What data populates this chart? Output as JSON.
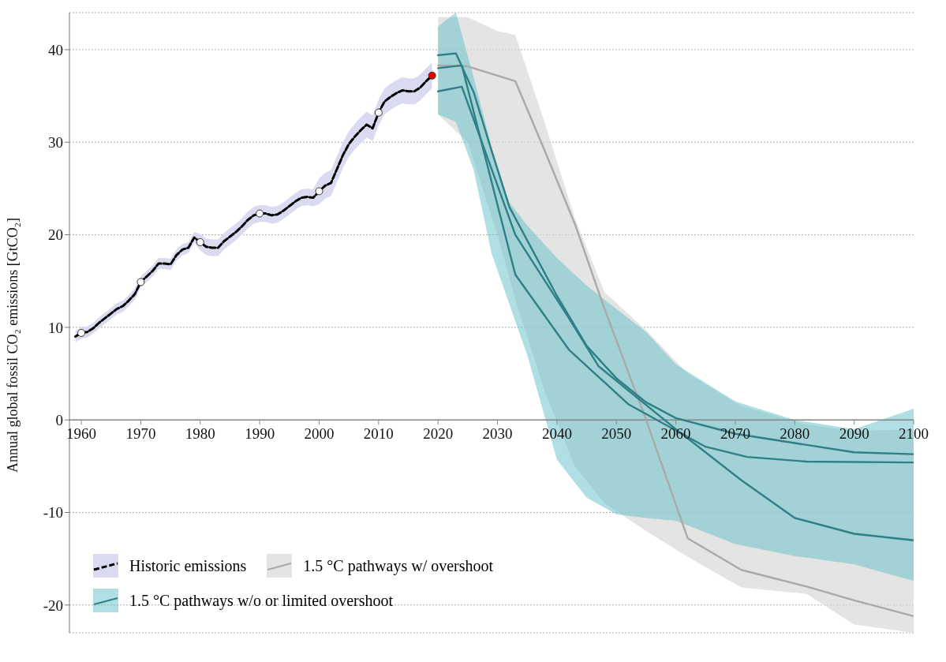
{
  "chart_data": {
    "type": "line",
    "ylabel": "Annual global fossil CO₂ emissions [GtCO₂]",
    "xlim": [
      1958,
      2100
    ],
    "xticks": [
      1960,
      1970,
      1980,
      1990,
      2000,
      2010,
      2020,
      2030,
      2040,
      2050,
      2060,
      2070,
      2080,
      2090,
      2100
    ],
    "ylim": [
      -23,
      44
    ],
    "yticks": [
      -20,
      -10,
      0,
      10,
      20,
      30,
      40
    ],
    "grid": "y",
    "legend": "bottom left",
    "series": [
      {
        "name": "Historic emissions",
        "color": "#000000",
        "line_style": "dashed",
        "marker": "none",
        "x": [
          1959,
          1960,
          1961,
          1962,
          1963,
          1964,
          1965,
          1966,
          1967,
          1968,
          1969,
          1970,
          1971,
          1972,
          1973,
          1974,
          1975,
          1976,
          1977,
          1978,
          1979,
          1980,
          1981,
          1982,
          1983,
          1984,
          1985,
          1986,
          1987,
          1988,
          1989,
          1990,
          1991,
          1992,
          1993,
          1994,
          1995,
          1996,
          1997,
          1998,
          1999,
          2000,
          2001,
          2002,
          2003,
          2004,
          2005,
          2006,
          2007,
          2008,
          2009,
          2010,
          2011,
          2012,
          2013,
          2014,
          2015,
          2016,
          2017,
          2018,
          2019
        ],
        "values": [
          9.0,
          9.4,
          9.5,
          9.9,
          10.5,
          11.0,
          11.5,
          12.0,
          12.3,
          12.9,
          13.6,
          14.9,
          15.5,
          16.1,
          16.9,
          16.9,
          16.8,
          17.8,
          18.4,
          18.6,
          19.7,
          19.2,
          18.7,
          18.6,
          18.6,
          19.3,
          19.8,
          20.3,
          20.9,
          21.6,
          22.1,
          22.3,
          22.3,
          22.1,
          22.2,
          22.6,
          23.1,
          23.6,
          24.0,
          24.1,
          24.0,
          24.7,
          25.3,
          25.6,
          27.1,
          28.6,
          29.8,
          30.6,
          31.3,
          31.9,
          31.5,
          33.2,
          34.4,
          34.9,
          35.3,
          35.6,
          35.5,
          35.5,
          35.9,
          36.6,
          37.2
        ],
        "lower": [
          8.4,
          8.8,
          8.9,
          9.3,
          9.9,
          10.4,
          10.9,
          11.4,
          11.7,
          12.3,
          13.0,
          14.3,
          14.9,
          15.5,
          16.3,
          16.3,
          16.2,
          17.2,
          17.8,
          18.0,
          19.1,
          18.3,
          17.8,
          17.7,
          17.7,
          18.4,
          18.9,
          19.4,
          20.0,
          20.7,
          21.2,
          21.4,
          21.4,
          21.2,
          21.3,
          21.7,
          22.2,
          22.7,
          23.1,
          23.2,
          23.1,
          23.3,
          23.9,
          24.2,
          25.7,
          27.2,
          28.4,
          29.2,
          29.9,
          30.5,
          30.1,
          31.8,
          33.0,
          33.5,
          33.9,
          34.2,
          34.1,
          34.1,
          34.5,
          35.2,
          35.8
        ],
        "upper": [
          9.6,
          10.0,
          10.1,
          10.5,
          11.1,
          11.6,
          12.1,
          12.6,
          12.9,
          13.5,
          14.2,
          15.5,
          16.1,
          16.7,
          17.5,
          17.5,
          17.4,
          18.4,
          19.0,
          19.2,
          20.3,
          20.1,
          19.6,
          19.5,
          19.5,
          20.2,
          20.7,
          21.2,
          21.8,
          22.5,
          23.0,
          23.2,
          23.2,
          23.0,
          23.1,
          23.5,
          24.0,
          24.5,
          24.9,
          25.0,
          24.9,
          26.1,
          26.7,
          27.0,
          28.5,
          30.0,
          31.2,
          32.0,
          32.7,
          33.3,
          32.9,
          34.6,
          35.8,
          36.3,
          36.7,
          37.0,
          36.9,
          36.9,
          37.3,
          38.0,
          38.6
        ]
      },
      {
        "type": "scatter",
        "color": "#ffffff",
        "marker": "circle",
        "x": [
          1960,
          1970,
          1980,
          1990,
          2000,
          2010
        ],
        "values": [
          9.4,
          14.9,
          19.2,
          22.3,
          24.7,
          33.2
        ]
      },
      {
        "type": "scatter",
        "color": "#e00000",
        "marker": "circle",
        "x": [
          2019
        ],
        "values": [
          37.2
        ]
      },
      {
        "name": "1.5 °C pathways w/ overshoot",
        "color": "#a9a9a9",
        "line_style": "solid",
        "marker": "none",
        "x": [
          2020,
          2025,
          2030,
          2033,
          2038,
          2043,
          2048,
          2055,
          2062,
          2071,
          2082,
          2090,
          2100
        ],
        "values": [
          38.3,
          38.2,
          37.2,
          36.6,
          29,
          21.2,
          12,
          0,
          -12.8,
          -16.2,
          -18,
          -19.5,
          -21.2
        ],
        "lower": [
          33,
          30,
          20,
          13,
          3,
          -5,
          -9,
          -12,
          -14.8,
          -18.1,
          -18.8,
          -22.1,
          -23
        ],
        "upper": [
          43.5,
          43.5,
          42,
          41.6,
          32,
          21.8,
          13.8,
          9.7,
          5,
          1.5,
          -0.5,
          -1.2,
          -1
        ]
      },
      {
        "name": "1.5 °C pathways w/o or limited overshoot",
        "color": "#2f7f86",
        "line_style": "solid",
        "marker": "none",
        "x": [
          2020,
          2023,
          2026,
          2029,
          2032,
          2035,
          2040,
          2045,
          2050,
          2055,
          2060,
          2070,
          2080,
          2090,
          2100
        ],
        "values": [
          39.4,
          39.6,
          35.4,
          29.1,
          23,
          19.4,
          13.4,
          8.0,
          4.5,
          1.9,
          0.2,
          -1.5,
          -2.5,
          -3.5,
          -3.7
        ],
        "lower": [
          33,
          32.2,
          27,
          18,
          12.5,
          7,
          -4.3,
          -8.4,
          -10.2,
          -10.6,
          -10.9,
          -13.4,
          -14.7,
          -15.6,
          -17.4
        ],
        "upper": [
          42.5,
          44,
          37,
          29.5,
          23.5,
          21,
          17.5,
          14.5,
          12,
          9.5,
          6,
          2,
          0,
          -1,
          1.2
        ]
      },
      {
        "color": "#2f7f86",
        "line_style": "solid",
        "marker": "none",
        "x": [
          2020,
          2024,
          2033,
          2042,
          2052,
          2065,
          2072,
          2082,
          2100
        ],
        "values": [
          38.0,
          38.3,
          15.7,
          7.6,
          1.7,
          -2.9,
          -4.0,
          -4.5,
          -4.6
        ]
      },
      {
        "color": "#2f7f86",
        "line_style": "solid",
        "marker": "none",
        "x": [
          2020,
          2024,
          2033,
          2042,
          2047,
          2060,
          2071,
          2080,
          2090,
          2100
        ],
        "values": [
          35.5,
          36.0,
          20,
          11,
          5.8,
          -1,
          -6.5,
          -10.6,
          -12.3,
          -13.0
        ]
      }
    ]
  }
}
